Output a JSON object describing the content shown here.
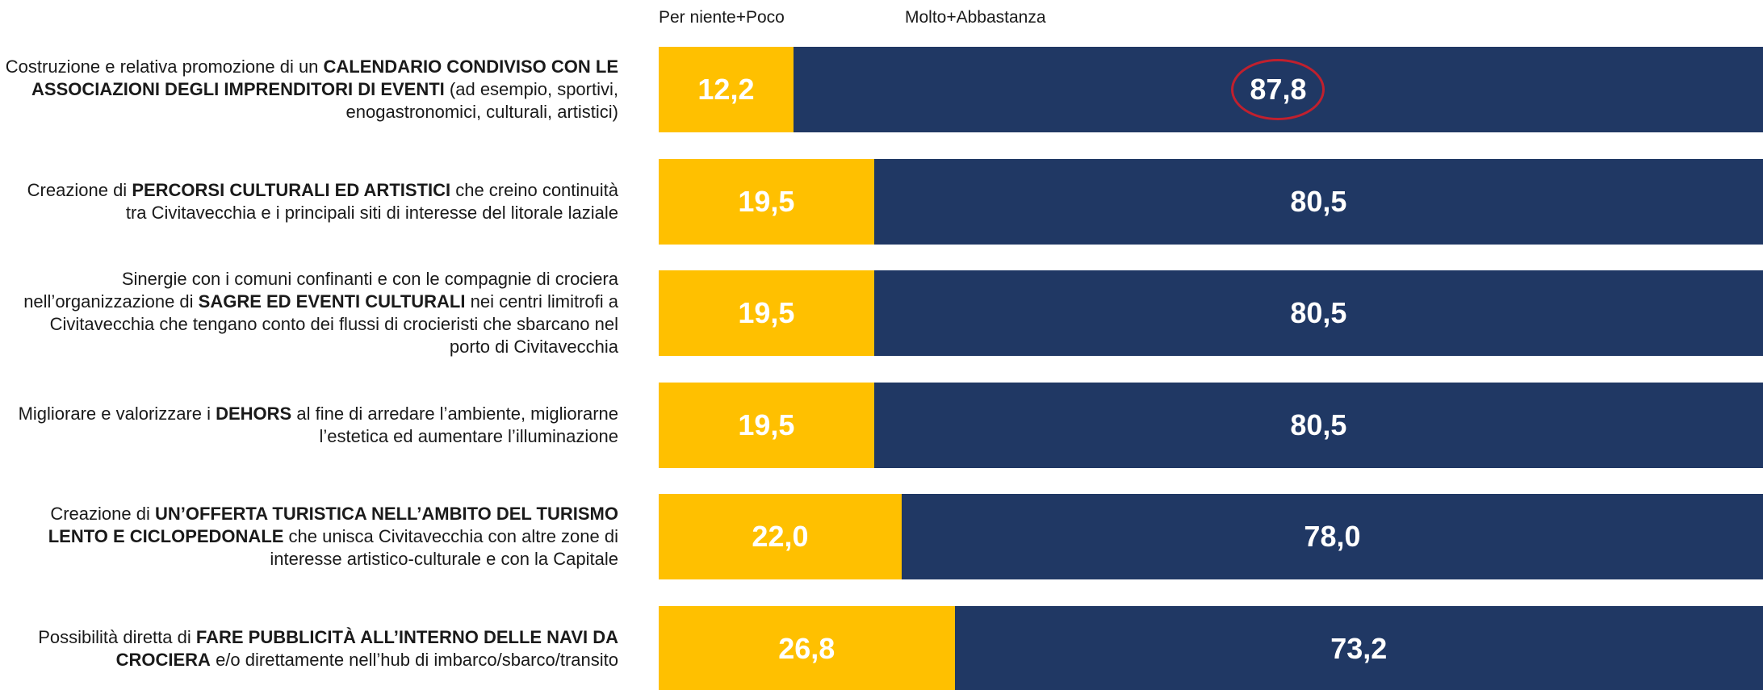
{
  "chart_data": {
    "type": "stacked-bar-horizontal",
    "categories": [
      [
        {
          "text": "Costruzione e relativa promozione di un ",
          "bold": false
        },
        {
          "text": "CALENDARIO CONDIVISO CON LE ASSOCIAZIONI DEGLI IMPRENDITORI DI EVENTI",
          "bold": true
        },
        {
          "text": " (ad esempio, sportivi, enogastronomici, culturali, artistici)",
          "bold": false
        }
      ],
      [
        {
          "text": "Creazione di ",
          "bold": false
        },
        {
          "text": "PERCORSI CULTURALI ED ARTISTICI",
          "bold": true
        },
        {
          "text": " che creino continuità tra Civitavecchia e i principali siti di interesse del litorale laziale",
          "bold": false
        }
      ],
      [
        {
          "text": "Sinergie con i comuni confinanti e con le compagnie di crociera nell’organizzazione di ",
          "bold": false
        },
        {
          "text": "SAGRE ED EVENTI CULTURALI",
          "bold": true
        },
        {
          "text": " nei centri limitrofi a Civitavecchia che tengano conto dei flussi di crocieristi che sbarcano nel porto di Civitavecchia",
          "bold": false
        }
      ],
      [
        {
          "text": "Migliorare e valorizzare i ",
          "bold": false
        },
        {
          "text": "DEHORS",
          "bold": true
        },
        {
          "text": " al fine di arredare l’ambiente, migliorarne l’estetica ed aumentare l’illuminazione",
          "bold": false
        }
      ],
      [
        {
          "text": "Creazione di ",
          "bold": false
        },
        {
          "text": "UN’OFFERTA TURISTICA NELL’AMBITO DEL TURISMO LENTO E CICLOPEDONALE",
          "bold": true
        },
        {
          "text": " che unisca Civitavecchia con altre zone di interesse artistico-culturale e con la Capitale",
          "bold": false
        }
      ],
      [
        {
          "text": "Possibilità diretta di ",
          "bold": false
        },
        {
          "text": "FARE PUBBLICITÀ ALL’INTERNO DELLE NAVI DA CROCIERA",
          "bold": true
        },
        {
          "text": " e/o direttamente nell’hub di imbarco/sbarco/transito",
          "bold": false
        }
      ]
    ],
    "series": [
      {
        "name": "Per niente+Poco",
        "color": "#ffc000",
        "values": [
          12.2,
          19.5,
          19.5,
          19.5,
          22.0,
          26.8
        ],
        "value_labels": [
          "12,2",
          "19,5",
          "19,5",
          "19,5",
          "22,0",
          "26,8"
        ]
      },
      {
        "name": "Molto+Abbastanza",
        "color": "#203864",
        "values": [
          87.8,
          80.5,
          80.5,
          80.5,
          78.0,
          73.2
        ],
        "value_labels": [
          "87,8",
          "80,5",
          "80,5",
          "80,5",
          "78,0",
          "73,2"
        ]
      }
    ],
    "xlim": [
      0,
      100
    ],
    "highlight": {
      "series": 1,
      "index": 0,
      "color": "#c0202e"
    }
  }
}
